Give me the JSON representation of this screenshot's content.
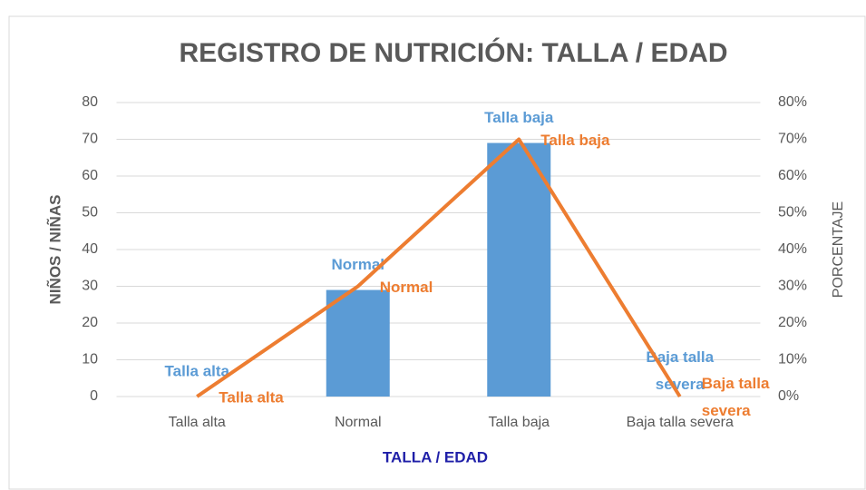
{
  "chart_data": {
    "type": "bar_line",
    "title": "REGISTRO DE NUTRICIÓN: TALLA / EDAD",
    "x_label": "TALLA / EDAD",
    "y_label": "NIÑOS / NIÑAS",
    "y2_label": "PORCENTAJE",
    "categories": [
      "Talla alta",
      "Normal",
      "Talla baja",
      "Baja talla severa"
    ],
    "series": [
      {
        "type": "bar",
        "color": "#5b9bd5",
        "values": [
          0,
          29,
          69,
          0
        ]
      },
      {
        "type": "line",
        "axis": "y2",
        "color": "#ed7d31",
        "values": [
          0,
          30,
          70,
          0
        ]
      }
    ],
    "ylim": [
      0,
      80
    ],
    "yticks": [
      0,
      10,
      20,
      30,
      40,
      50,
      60,
      70,
      80
    ],
    "y2lim": [
      0,
      80
    ],
    "y2ticks": [
      {
        "value": 0,
        "label": "0%"
      },
      {
        "value": 10,
        "label": "10%"
      },
      {
        "value": 20,
        "label": "20%"
      },
      {
        "value": 30,
        "label": "30%"
      },
      {
        "value": 40,
        "label": "40%"
      },
      {
        "value": 50,
        "label": "50%"
      },
      {
        "value": 60,
        "label": "60%"
      },
      {
        "value": 70,
        "label": "70%"
      },
      {
        "value": 80,
        "label": "80%"
      }
    ],
    "grid": true
  }
}
